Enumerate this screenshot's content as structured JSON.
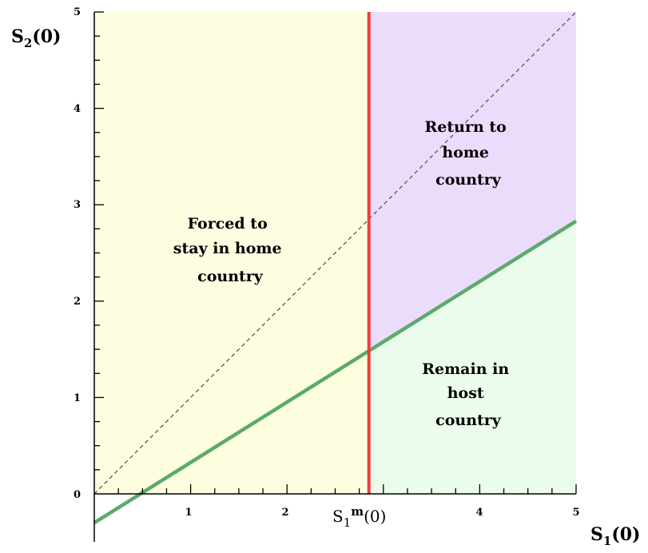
{
  "diagram": {
    "x_axis_label": {
      "base": "S",
      "sub": "1",
      "arg": "(0)"
    },
    "y_axis_label": {
      "base": "S",
      "sub": "2",
      "arg": "(0)"
    },
    "x_ticks": [
      "0",
      "1",
      "2",
      "4",
      "5"
    ],
    "y_ticks": [
      "0",
      "1",
      "2",
      "3",
      "4",
      "5"
    ],
    "threshold_label": {
      "base": "S",
      "sub": "1",
      "sup": "m",
      "arg": "(0)"
    },
    "regions": {
      "forced_stay": [
        "Forced to",
        "stay in home",
        "country"
      ],
      "return_home": [
        "Return to",
        "home",
        "country"
      ],
      "remain_host": [
        "Remain in",
        "host",
        "country"
      ]
    },
    "colors": {
      "forced_stay": "#fdfde0",
      "return_home": "#ecdcfc",
      "remain_host": "#ecfcec",
      "threshold_line": "#f03c3c",
      "boundary_line": "#5caa6a",
      "diagonal_line": "#555555",
      "axis": "#000000"
    }
  },
  "chart_data": {
    "type": "line",
    "xlim": [
      0,
      5
    ],
    "ylim": [
      0,
      5
    ],
    "threshold_x": 2.85,
    "series": [
      {
        "x": [
          0,
          5
        ],
        "y": [
          -0.3,
          2.83
        ]
      },
      {
        "x": [
          0,
          5
        ],
        "y": [
          0,
          5
        ]
      }
    ]
  }
}
